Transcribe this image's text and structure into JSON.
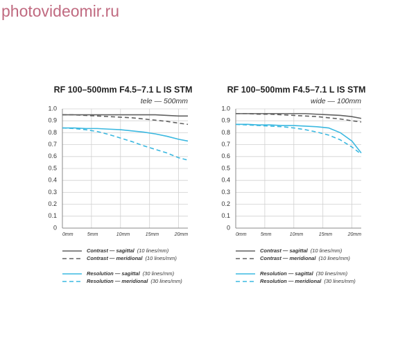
{
  "watermark": "photovideomir.ru",
  "chart_data": [
    {
      "type": "line",
      "title": "RF 100–500mm F4.5–7.1 L IS STM",
      "subtitle": "tele — 500mm",
      "x": [
        0,
        2,
        4,
        6,
        8,
        10,
        12,
        14,
        16,
        18,
        20,
        21.6
      ],
      "xlim": [
        0,
        21.6
      ],
      "xticks": [
        {
          "value": 0,
          "label": "0mm"
        },
        {
          "value": 5,
          "label": "5mm"
        },
        {
          "value": 10,
          "label": "10mm"
        },
        {
          "value": 15,
          "label": "15mm"
        },
        {
          "value": 20,
          "label": "20mm"
        }
      ],
      "ylim": [
        0,
        1
      ],
      "yticks": [
        0,
        0.1,
        0.2,
        0.3,
        0.4,
        0.5,
        0.6,
        0.7,
        0.8,
        0.9,
        {
          "value": 1,
          "label": "1.0"
        }
      ],
      "grid": true,
      "series": [
        {
          "name": "Contrast — sagittal",
          "lines": "(10 lines/mm)",
          "color": "#606060",
          "style": "solid",
          "values": [
            0.95,
            0.95,
            0.95,
            0.95,
            0.95,
            0.95,
            0.95,
            0.95,
            0.95,
            0.945,
            0.94,
            0.94
          ]
        },
        {
          "name": "Contrast — meridional",
          "lines": "(10 lines/mm)",
          "color": "#606060",
          "style": "dashed",
          "values": [
            0.95,
            0.95,
            0.945,
            0.94,
            0.935,
            0.93,
            0.925,
            0.915,
            0.905,
            0.895,
            0.88,
            0.87
          ]
        },
        {
          "name": "Resolution — sagittal",
          "lines": "(30 lines/mm)",
          "color": "#3ab8e0",
          "style": "solid",
          "values": [
            0.84,
            0.84,
            0.835,
            0.835,
            0.83,
            0.825,
            0.815,
            0.805,
            0.79,
            0.77,
            0.745,
            0.73
          ]
        },
        {
          "name": "Resolution — meridional",
          "lines": "(30 lines/mm)",
          "color": "#3ab8e0",
          "style": "dashed",
          "values": [
            0.84,
            0.835,
            0.825,
            0.81,
            0.785,
            0.755,
            0.725,
            0.69,
            0.66,
            0.63,
            0.59,
            0.57
          ]
        }
      ]
    },
    {
      "type": "line",
      "title": "RF 100–500mm F4.5–7.1 L IS STM",
      "subtitle": "wide — 100mm",
      "x": [
        0,
        2,
        4,
        6,
        8,
        10,
        12,
        14,
        16,
        18,
        20,
        21.6
      ],
      "xlim": [
        0,
        21.6
      ],
      "xticks": [
        {
          "value": 0,
          "label": "0mm"
        },
        {
          "value": 5,
          "label": "5mm"
        },
        {
          "value": 10,
          "label": "10mm"
        },
        {
          "value": 15,
          "label": "15mm"
        },
        {
          "value": 20,
          "label": "20mm"
        }
      ],
      "ylim": [
        0,
        1
      ],
      "yticks": [
        0,
        0.1,
        0.2,
        0.3,
        0.4,
        0.5,
        0.6,
        0.7,
        0.8,
        0.9,
        {
          "value": 1,
          "label": "1.0"
        }
      ],
      "grid": true,
      "series": [
        {
          "name": "Contrast — sagittal",
          "lines": "(10 lines/mm)",
          "color": "#606060",
          "style": "solid",
          "values": [
            0.96,
            0.96,
            0.96,
            0.96,
            0.96,
            0.96,
            0.96,
            0.955,
            0.95,
            0.945,
            0.935,
            0.92
          ]
        },
        {
          "name": "Contrast — meridional",
          "lines": "(10 lines/mm)",
          "color": "#606060",
          "style": "dashed",
          "values": [
            0.96,
            0.96,
            0.955,
            0.955,
            0.95,
            0.945,
            0.94,
            0.935,
            0.925,
            0.915,
            0.9,
            0.89
          ]
        },
        {
          "name": "Resolution — sagittal",
          "lines": "(30 lines/mm)",
          "color": "#3ab8e0",
          "style": "solid",
          "values": [
            0.87,
            0.87,
            0.865,
            0.865,
            0.86,
            0.86,
            0.855,
            0.85,
            0.84,
            0.8,
            0.73,
            0.63
          ]
        },
        {
          "name": "Resolution — meridional",
          "lines": "(30 lines/mm)",
          "color": "#3ab8e0",
          "style": "dashed",
          "values": [
            0.87,
            0.865,
            0.86,
            0.855,
            0.85,
            0.84,
            0.825,
            0.805,
            0.78,
            0.74,
            0.68,
            0.62
          ]
        }
      ]
    }
  ]
}
